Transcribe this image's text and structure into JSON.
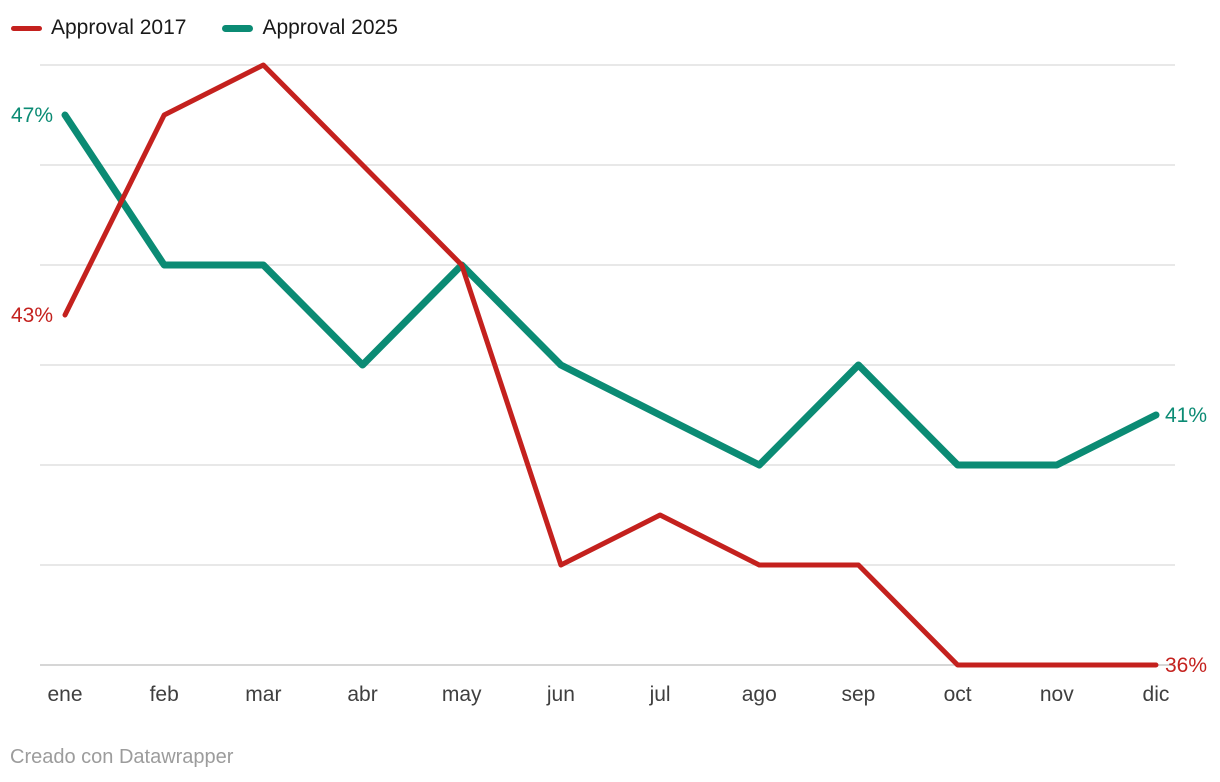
{
  "legend": {
    "items": [
      {
        "label": "Approval 2017"
      },
      {
        "label": "Approval 2025"
      }
    ]
  },
  "footer": {
    "text": "Creado con Datawrapper"
  },
  "chart_data": {
    "type": "line",
    "title": "",
    "categories": [
      "ene",
      "feb",
      "mar",
      "abr",
      "may",
      "jun",
      "jul",
      "ago",
      "sep",
      "oct",
      "nov",
      "dic"
    ],
    "series": [
      {
        "name": "Approval 2017",
        "color": "#c4211e",
        "stroke_width": 5,
        "values": [
          43,
          47,
          48,
          46,
          44,
          38,
          39,
          38,
          38,
          36,
          36,
          36
        ],
        "start_label": "43%",
        "end_label": "36%"
      },
      {
        "name": "Approval 2025",
        "color": "#0b8b74",
        "stroke_width": 7,
        "values": [
          47,
          44,
          44,
          42,
          44,
          42,
          41,
          40,
          42,
          40,
          40,
          41
        ],
        "start_label": "47%",
        "end_label": "41%"
      }
    ],
    "unit": "%",
    "ylim": [
      36,
      48
    ],
    "gridline_step": 2,
    "grid_on": true,
    "grid_color": "#d9d9d9",
    "baseline_color": "#c9c9c9",
    "legend_position": "top-left",
    "xlabel": "",
    "ylabel": ""
  }
}
